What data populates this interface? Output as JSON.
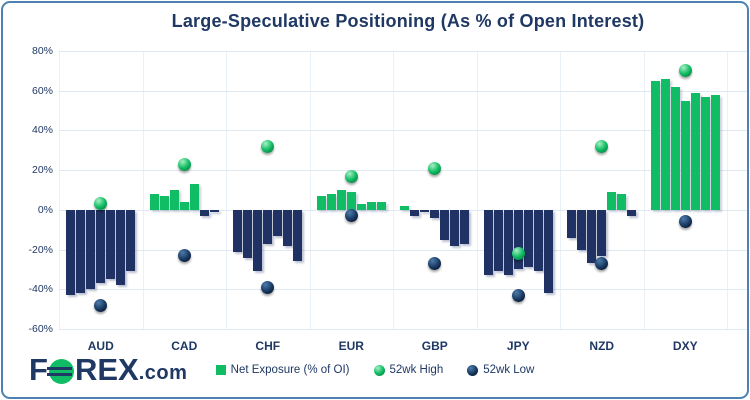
{
  "title": "Large-Speculative Positioning (As % of Open Interest)",
  "logo": {
    "f": "F",
    "rex": "REX",
    "com": ".com"
  },
  "legend": {
    "items": [
      {
        "label": "Net Exposure (% of OI)",
        "swatch": "green-square",
        "color": "#10bd64"
      },
      {
        "label": "52wk High",
        "swatch": "green-dot",
        "color": "#10bd64"
      },
      {
        "label": "52wk Low",
        "swatch": "navy-dot",
        "color": "#17375e"
      }
    ]
  },
  "colors": {
    "positive_bar": "#10bd64",
    "negative_bar": "#1f3263",
    "text_navy": "#1f3864",
    "gridline": "#dfe9f1",
    "frame_border": "#4d82b0",
    "high_dot": "#10bd64",
    "low_dot": "#17375e"
  },
  "chart_data": {
    "type": "bar",
    "title": "Large-Speculative Positioning (As % of Open Interest)",
    "categories": [
      "AUD",
      "CAD",
      "CHF",
      "EUR",
      "GBP",
      "JPY",
      "NZD",
      "DXY"
    ],
    "y_ticks": [
      80,
      60,
      40,
      20,
      0,
      -20,
      -40,
      -60
    ],
    "ylim": [
      -60,
      80
    ],
    "ylabel": "% of Open Interest",
    "grid": "horizontal gridlines at 20% steps, faint vertical category separators",
    "legend_position": "bottom",
    "series": [
      {
        "name": "Net Exposure (% of OI)",
        "note": "7 weekly readings per currency; green = positive, navy = negative",
        "values_by_category": {
          "AUD": [
            -43,
            -42,
            -40,
            -37,
            -35,
            -38,
            -31
          ],
          "CAD": [
            8,
            7,
            10,
            4,
            13,
            -3,
            -1
          ],
          "CHF": [
            -21,
            -24,
            -31,
            -17,
            -13,
            -18,
            -26
          ],
          "EUR": [
            7,
            8,
            10,
            9,
            3,
            4,
            4
          ],
          "GBP": [
            2,
            -3,
            -1,
            -4,
            -15,
            -18,
            -17
          ],
          "JPY": [
            -33,
            -31,
            -33,
            -30,
            -29,
            -31,
            -42
          ],
          "NZD": [
            -14,
            -20,
            -27,
            -23,
            9,
            8,
            -3
          ],
          "DXY": [
            65,
            66,
            62,
            55,
            59,
            57,
            58
          ]
        }
      },
      {
        "name": "52wk High",
        "values": [
          3,
          23,
          32,
          17,
          21,
          -22,
          32,
          70
        ]
      },
      {
        "name": "52wk Low",
        "values": [
          -48,
          -23,
          -39,
          -3,
          -27,
          -43,
          -27,
          -6
        ]
      }
    ]
  }
}
